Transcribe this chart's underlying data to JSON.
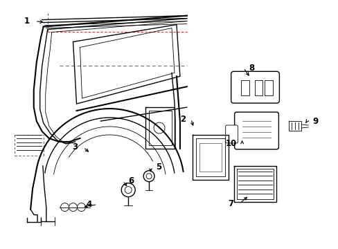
{
  "bg_color": "#ffffff",
  "line_color": "#000000",
  "red_color": "#dd0000",
  "gray_color": "#666666",
  "figsize": [
    4.89,
    3.6
  ],
  "dpi": 100
}
